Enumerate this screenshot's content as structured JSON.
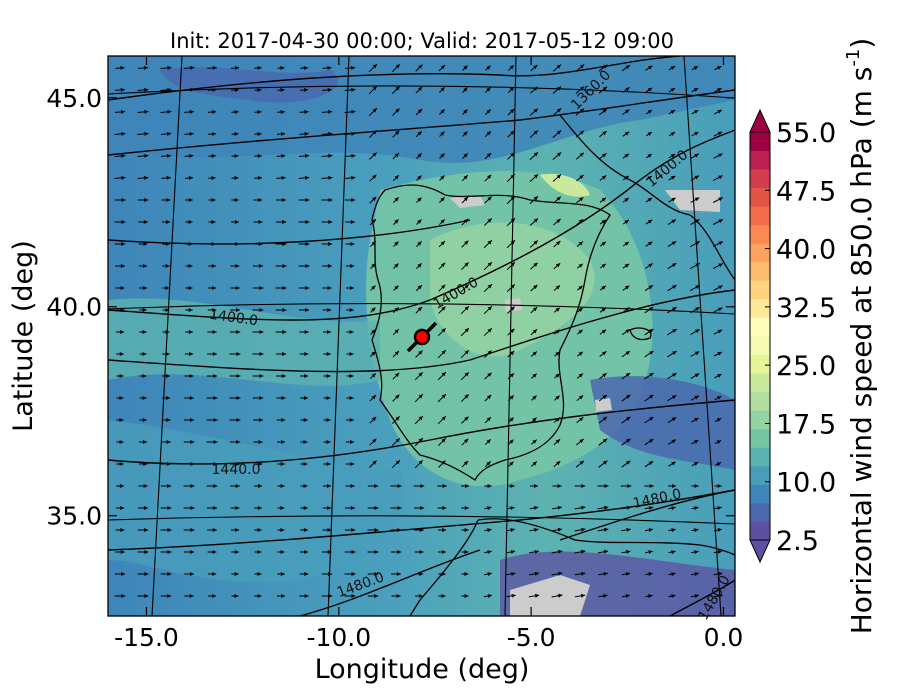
{
  "chart_data": {
    "type": "heatmap",
    "title": "Init: 2017-04-30 00:00; Valid: 2017-05-12 09:00",
    "xlabel": "Longitude (deg)",
    "ylabel": "Latitude (deg)",
    "xlim": [
      -16.0,
      0.3
    ],
    "ylim": [
      32.6,
      46.0
    ],
    "x_ticks": [
      -15.0,
      -10.0,
      -5.0,
      0.0
    ],
    "x_tick_labels": [
      "-15.0",
      "-10.0",
      "-5.0",
      "0.0"
    ],
    "y_ticks": [
      35.0,
      40.0,
      45.0
    ],
    "y_tick_labels": [
      "35.0",
      "40.0",
      "45.0"
    ],
    "grid": false,
    "colorbar": {
      "label_main": "Horizontal wind speed at 850.0 hPa (m s",
      "label_exp": "-1",
      "label_close": ")",
      "min": 2.5,
      "max": 55.0,
      "step": 2.5,
      "tick_values": [
        2.5,
        10.0,
        17.5,
        25.0,
        32.5,
        40.0,
        47.5,
        55.0
      ],
      "tick_labels": [
        "2.5",
        "10.0",
        "17.5",
        "25.0",
        "32.5",
        "40.0",
        "47.5",
        "55.0"
      ],
      "colors": [
        "#5e4fa2",
        "#4a68ae",
        "#3e85b9",
        "#489dbb",
        "#5db3b0",
        "#76c5a5",
        "#94d3a4",
        "#b1dfa2",
        "#cbe99d",
        "#e6f598",
        "#f4faae",
        "#fefebd",
        "#fee89a",
        "#fed480",
        "#fdbf6f",
        "#fda35d",
        "#fa8952",
        "#f26d4a",
        "#e45446",
        "#d43d4f",
        "#bb2250",
        "#9e0142"
      ]
    },
    "contour_labels": [
      "1360.0",
      "1400.0",
      "1400.0",
      "1400.0",
      "1440.0",
      "1480.0",
      "1480.0",
      "1480.0"
    ],
    "marker": {
      "lon": -7.7,
      "lat": 39.3,
      "color": "#ff0000"
    },
    "wind_field": {
      "direction": "westerly, veering to southwesterly over Iberia"
    }
  }
}
